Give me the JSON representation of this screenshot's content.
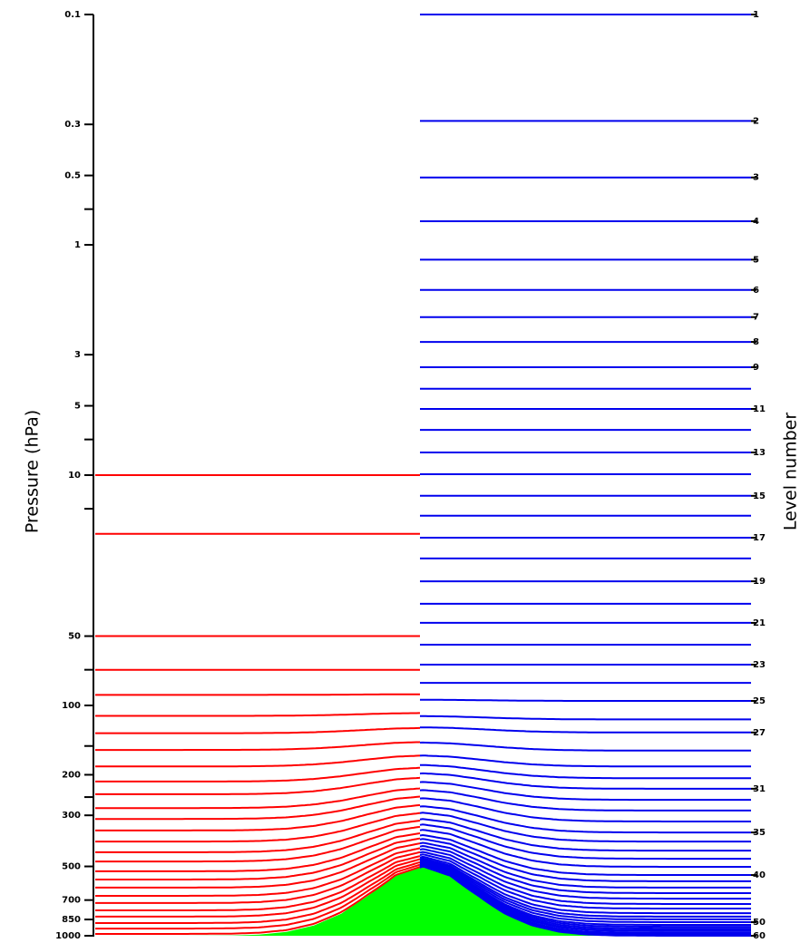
{
  "chart_data": {
    "type": "levels",
    "ylabel": "Pressure (hPa)",
    "y2label": "Level number",
    "ylim": [
      1000,
      0.1
    ],
    "log_y": true,
    "yticks": [
      0.1,
      0.3,
      0.5,
      1,
      3,
      5,
      10,
      50,
      100,
      200,
      300,
      500,
      700,
      850,
      1000
    ],
    "yticks_minor": [
      0.7,
      7,
      14,
      70,
      150,
      250
    ],
    "y2ticks": [
      1,
      2,
      3,
      4,
      5,
      6,
      7,
      8,
      9,
      11,
      13,
      15,
      17,
      19,
      21,
      23,
      25,
      27,
      31,
      35,
      40,
      50,
      60
    ],
    "left_levels": {
      "color": "#ff0000",
      "values": [
        10,
        18,
        50,
        70,
        90,
        111,
        132,
        156,
        184,
        214,
        243,
        279,
        311,
        349,
        390,
        434,
        476,
        525,
        570,
        618,
        671,
        721,
        776,
        826,
        881,
        931,
        982
      ]
    },
    "right_levels": {
      "color": "#0000ee",
      "values": [
        0.1,
        0.29,
        0.51,
        0.79,
        1.16,
        1.57,
        2.06,
        2.64,
        3.4,
        4.22,
        5.16,
        6.36,
        7.97,
        9.91,
        12.3,
        15.0,
        18.7,
        23.0,
        28.9,
        36.2,
        43.8,
        54.5,
        66.5,
        79.8,
        95.6,
        115,
        131,
        157,
        184,
        207,
        230,
        257,
        286,
        319,
        356,
        390,
        427,
        463,
        502,
        545,
        580,
        618,
        653,
        690,
        728,
        762,
        798,
        826,
        849,
        873,
        897,
        914,
        931,
        947,
        955,
        972,
        982,
        991,
        996,
        1000
      ]
    },
    "terrain": {
      "color": "#00ff00",
      "values": [
        1000,
        1000,
        1000,
        1000,
        999,
        997,
        988,
        962,
        903,
        802,
        668,
        549,
        500,
        549,
        668,
        802,
        903,
        962,
        988,
        997,
        999,
        1000,
        1000,
        1000,
        1000
      ]
    }
  }
}
